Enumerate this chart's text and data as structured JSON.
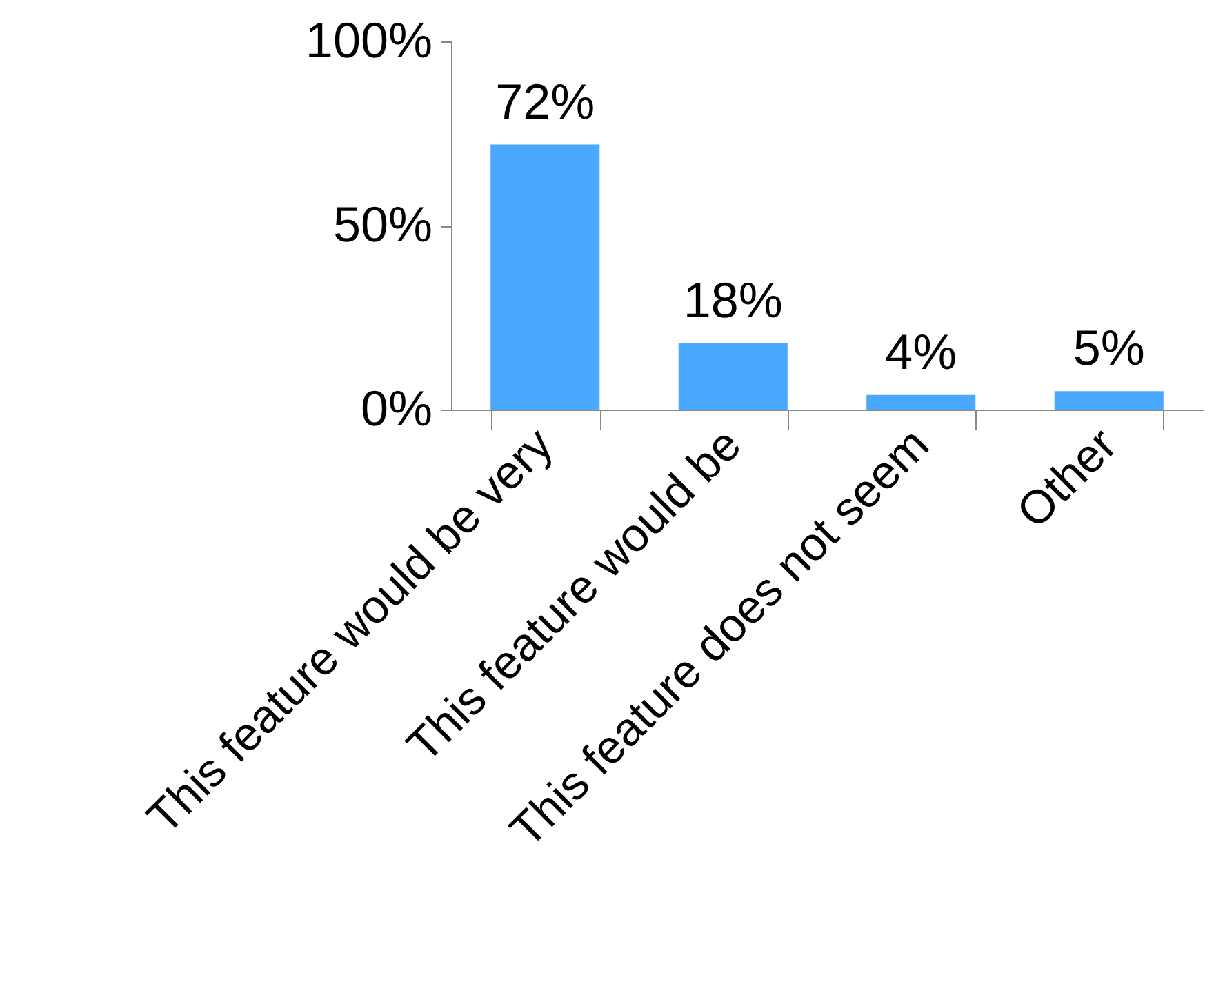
{
  "chart_data": {
    "type": "bar",
    "categories": [
      "This feature would be very",
      "This feature would be",
      "This feature does not seem",
      "Other"
    ],
    "values": [
      72,
      18,
      4,
      5
    ],
    "value_labels": [
      "72%",
      "18%",
      "4%",
      "5%"
    ],
    "color": "#4aa8ff",
    "ylim": [
      0,
      100
    ],
    "yticks": [
      {
        "value": 0,
        "label": "0%"
      },
      {
        "value": 50,
        "label": "50%"
      },
      {
        "value": 100,
        "label": "100%"
      }
    ],
    "grid": false
  }
}
